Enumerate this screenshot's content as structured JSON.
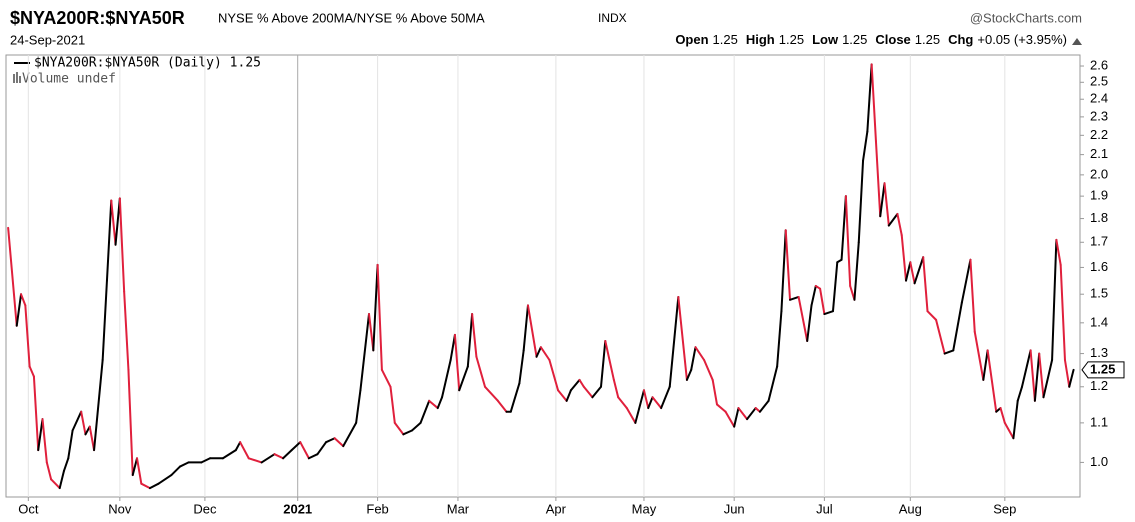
{
  "header": {
    "symbol": "$NYA200R:$NYA50R",
    "description": "NYSE % Above 200MA/NYSE % Above 50MA",
    "exchange": "INDX",
    "brand": "@StockCharts.com",
    "date": "24-Sep-2021",
    "quote": [
      {
        "label": "Open",
        "value": "1.25"
      },
      {
        "label": "High",
        "value": "1.25"
      },
      {
        "label": "Low",
        "value": "1.25"
      },
      {
        "label": "Close",
        "value": "1.25"
      },
      {
        "label": "Chg",
        "value": "+0.05 (+3.95%)"
      }
    ],
    "legend": "$NYA200R:$NYA50R (Daily) 1.25",
    "volume": "Volume undef"
  },
  "chart_data": {
    "type": "line",
    "log_scale": true,
    "grid": true,
    "up_color": "#000000",
    "down_color": "#e0203c",
    "xlim": [
      -0.5,
      249.5
    ],
    "ylim": [
      0.92,
      2.67
    ],
    "xticks": [
      {
        "value": 4.7,
        "label": "Oct"
      },
      {
        "value": 26,
        "label": "Nov"
      },
      {
        "value": 45.8,
        "label": "Dec"
      },
      {
        "value": 67.4,
        "label": "2021"
      },
      {
        "value": 86,
        "label": "Feb"
      },
      {
        "value": 104.7,
        "label": "Mar"
      },
      {
        "value": 127.5,
        "label": "Apr"
      },
      {
        "value": 148,
        "label": "May"
      },
      {
        "value": 169,
        "label": "Jun"
      },
      {
        "value": 190,
        "label": "Jul"
      },
      {
        "value": 210,
        "label": "Aug"
      },
      {
        "value": 232,
        "label": "Sep"
      }
    ],
    "yticks": [
      {
        "value": 1,
        "label": "1.0"
      },
      1.1,
      1.2,
      1.3,
      1.4,
      1.5,
      1.6,
      1.7,
      1.8,
      1.9,
      {
        "value": 2,
        "label": "2.0"
      },
      2.1,
      2.2,
      2.3,
      2.4,
      2.5,
      2.6
    ],
    "x": [
      0,
      2,
      3,
      4,
      5,
      6,
      7,
      8,
      9,
      10,
      12,
      13,
      14,
      15,
      17,
      18,
      19,
      20,
      22,
      23,
      24,
      25,
      26,
      27,
      28,
      29,
      30,
      31,
      33,
      35,
      38,
      40,
      42,
      45,
      47,
      50,
      53,
      54,
      56,
      59,
      62,
      64,
      66,
      68,
      70,
      72,
      74,
      76,
      78,
      81,
      82,
      84,
      85,
      86,
      87,
      89,
      90,
      92,
      94,
      96,
      98,
      100,
      101,
      103,
      104,
      105,
      107,
      108,
      109,
      111,
      114,
      116,
      117,
      119,
      120,
      121,
      123,
      124,
      126,
      128,
      130,
      131,
      133,
      134,
      136,
      138,
      139,
      141,
      142,
      144,
      146,
      148,
      149,
      150,
      152,
      154,
      156,
      158,
      159,
      160,
      162,
      164,
      165,
      167,
      169,
      170,
      172,
      174,
      175,
      177,
      179,
      180,
      181,
      182,
      184,
      186,
      187,
      188,
      189,
      190,
      192,
      193,
      194,
      195,
      196,
      197,
      198,
      199,
      200,
      201,
      202,
      203,
      204,
      205,
      207,
      208,
      209,
      210,
      211,
      213,
      214,
      216,
      218,
      220,
      222,
      224,
      225,
      227,
      228,
      230,
      231,
      232,
      234,
      235,
      236,
      238,
      239,
      240,
      241,
      243,
      244,
      245,
      246,
      247,
      248
    ],
    "values": [
      1.76,
      1.39,
      1.5,
      1.46,
      1.26,
      1.23,
      1.03,
      1.11,
      1.0,
      0.96,
      0.94,
      0.98,
      1.01,
      1.08,
      1.13,
      1.07,
      1.09,
      1.03,
      1.28,
      1.55,
      1.88,
      1.69,
      1.89,
      1.51,
      1.25,
      0.97,
      1.01,
      0.95,
      0.94,
      0.95,
      0.97,
      0.99,
      1.0,
      1.0,
      1.01,
      1.01,
      1.03,
      1.05,
      1.01,
      1.0,
      1.02,
      1.01,
      1.03,
      1.05,
      1.01,
      1.02,
      1.05,
      1.06,
      1.04,
      1.1,
      1.19,
      1.43,
      1.31,
      1.61,
      1.25,
      1.2,
      1.1,
      1.07,
      1.08,
      1.1,
      1.16,
      1.14,
      1.17,
      1.28,
      1.36,
      1.19,
      1.26,
      1.43,
      1.29,
      1.2,
      1.16,
      1.13,
      1.13,
      1.21,
      1.31,
      1.46,
      1.29,
      1.32,
      1.28,
      1.19,
      1.16,
      1.19,
      1.22,
      1.2,
      1.17,
      1.2,
      1.34,
      1.22,
      1.17,
      1.14,
      1.1,
      1.19,
      1.14,
      1.17,
      1.14,
      1.2,
      1.49,
      1.22,
      1.25,
      1.32,
      1.28,
      1.22,
      1.15,
      1.13,
      1.09,
      1.14,
      1.11,
      1.14,
      1.13,
      1.16,
      1.26,
      1.44,
      1.75,
      1.48,
      1.49,
      1.34,
      1.46,
      1.53,
      1.52,
      1.43,
      1.44,
      1.62,
      1.63,
      1.9,
      1.53,
      1.48,
      1.7,
      2.07,
      2.22,
      2.61,
      2.17,
      1.81,
      1.96,
      1.77,
      1.82,
      1.73,
      1.55,
      1.62,
      1.54,
      1.64,
      1.44,
      1.41,
      1.3,
      1.31,
      1.47,
      1.63,
      1.37,
      1.22,
      1.31,
      1.13,
      1.14,
      1.1,
      1.06,
      1.16,
      1.2,
      1.31,
      1.16,
      1.3,
      1.17,
      1.28,
      1.71,
      1.61,
      1.28,
      1.2,
      1.25
    ]
  }
}
